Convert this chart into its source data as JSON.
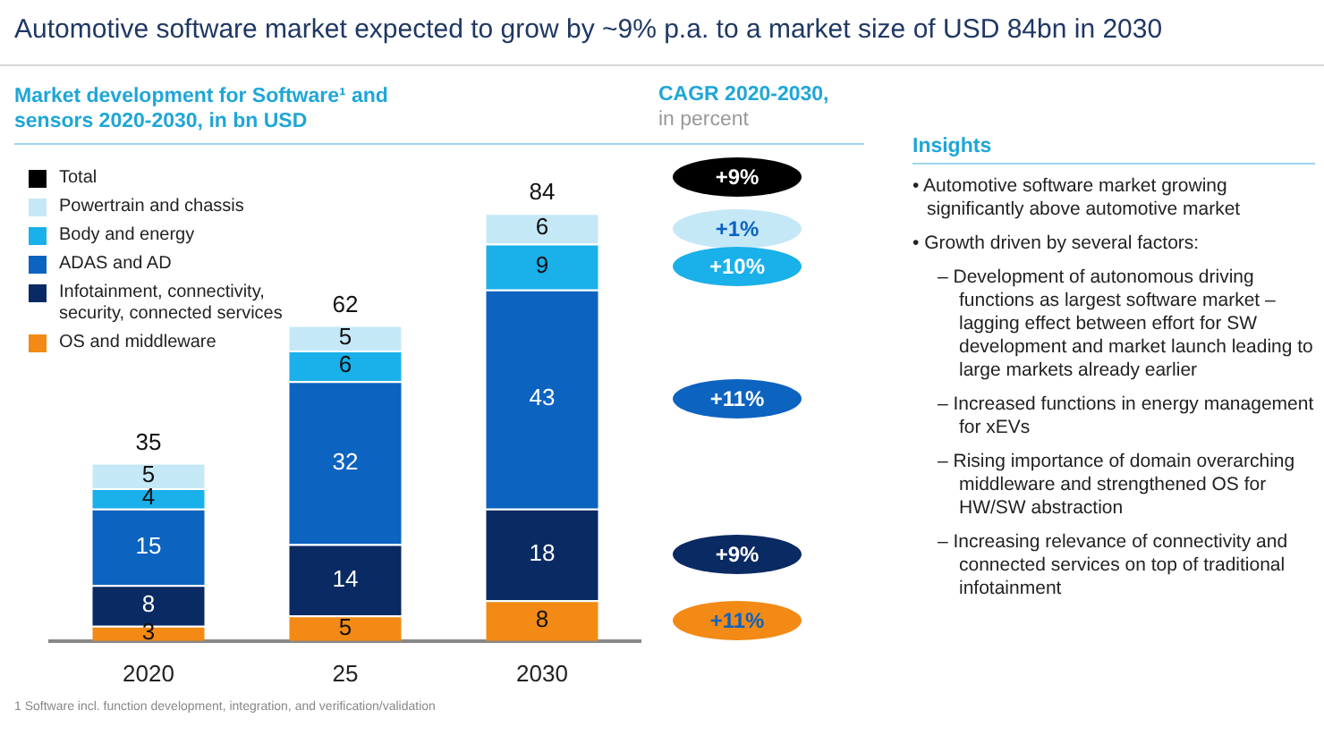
{
  "chart_data": {
    "type": "bar",
    "title": "Automotive software market expected to grow by ~9% p.a. to a market size of USD 84bn in 2030",
    "subtitle": "Market development for Software¹ and sensors 2020-2030, in bn USD",
    "categories": [
      "2020",
      "25",
      "2030"
    ],
    "stacked": true,
    "data_labels": true,
    "legend": "top left",
    "legend_title": "Total",
    "totals": [
      "35",
      "62",
      "84"
    ],
    "series": [
      {
        "name": "OS and middleware",
        "color": "#f28a15",
        "values": [
          3,
          5,
          8
        ]
      },
      {
        "name": "Infotainment, connectivity, security, connected services",
        "color": "#0a2a63",
        "values": [
          8,
          14,
          18
        ]
      },
      {
        "name": "ADAS and AD",
        "color": "#0c63c0",
        "values": [
          15,
          32,
          43
        ]
      },
      {
        "name": "Body and energy",
        "color": "#1ab0ea",
        "values": [
          4,
          6,
          9
        ]
      },
      {
        "name": "Powertrain and chassis",
        "color": "#c5e8f7",
        "values": [
          5,
          5,
          6
        ]
      }
    ],
    "annotations": [
      "CAGR 2020-2030,",
      "in percent",
      "+9%",
      "+1%",
      "+10%",
      "+11%",
      "+9%",
      "+11%",
      "Insights",
      "• Automotive software market growing significantly above automotive market",
      "• Growth driven by several factors:",
      "– Development of autonomous driving functions as largest software market – lagging effect between effort for SW development and market launch leading to large markets already earlier",
      "– Increased functions in energy management for xEVs",
      "– Rising importance of domain overarching middleware and strengthened OS for HW/SW abstraction",
      "– Increasing relevance of connectivity and connected services on top of traditional infotainment",
      "1 Software incl. function development, integration, and verification/validation"
    ]
  }
}
